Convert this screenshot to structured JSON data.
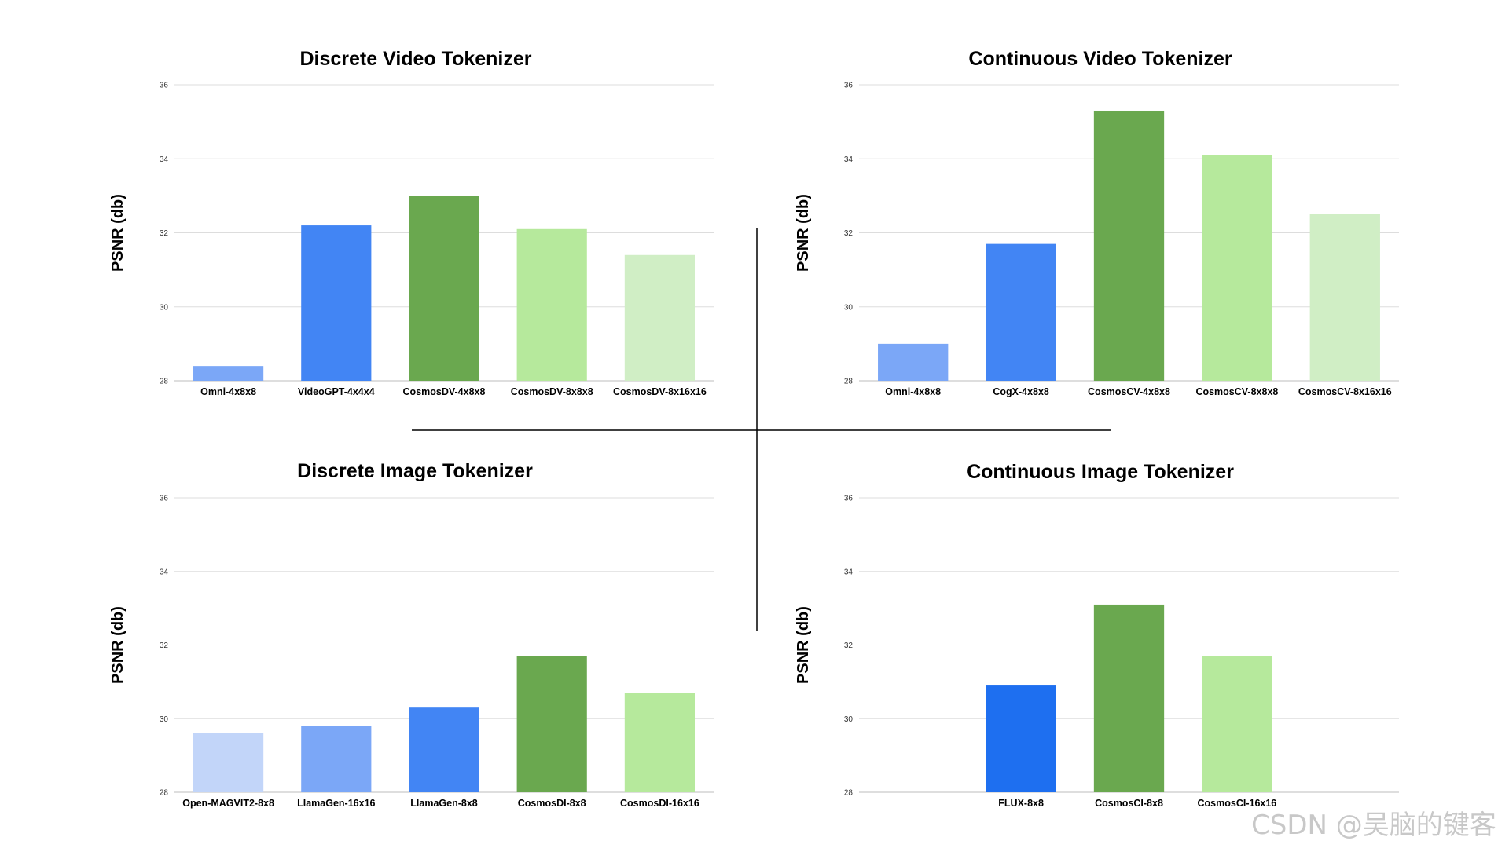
{
  "watermark": "CSDN @吴脑的键客",
  "colors": {
    "grid": "#dddddd",
    "divider": "#000000"
  },
  "chart_data": [
    {
      "type": "bar",
      "title": "Discrete Video Tokenizer",
      "ylabel": "PSNR (db)",
      "xlabel": "",
      "ylim": [
        28,
        36
      ],
      "yticks": [
        "28",
        "30",
        "32",
        "34",
        "36"
      ],
      "grid": true,
      "categories": [
        "Omni-4x8x8",
        "VideoGPT-4x4x4",
        "CosmosDV-4x8x8",
        "CosmosDV-8x8x8",
        "CosmosDV-8x16x16"
      ],
      "values": [
        28.4,
        32.2,
        33.0,
        32.1,
        31.4
      ],
      "colors": [
        "#7ba7f7",
        "#4285f4",
        "#6aa84f",
        "#b6e99c",
        "#d0eec5"
      ]
    },
    {
      "type": "bar",
      "title": "Continuous Video Tokenizer",
      "ylabel": "PSNR (db)",
      "xlabel": "",
      "ylim": [
        28,
        36
      ],
      "yticks": [
        "28",
        "30",
        "32",
        "34",
        "36"
      ],
      "grid": true,
      "categories": [
        "Omni-4x8x8",
        "CogX-4x8x8",
        "CosmosCV-4x8x8",
        "CosmosCV-8x8x8",
        "CosmosCV-8x16x16"
      ],
      "values": [
        29.0,
        31.7,
        35.3,
        34.1,
        32.5
      ],
      "colors": [
        "#7ba7f7",
        "#4285f4",
        "#6aa84f",
        "#b6e99c",
        "#d0eec5"
      ]
    },
    {
      "type": "bar",
      "title": "Discrete Image Tokenizer",
      "ylabel": "PSNR (db)",
      "xlabel": "",
      "ylim": [
        28,
        36
      ],
      "yticks": [
        "28",
        "30",
        "32",
        "34",
        "36"
      ],
      "grid": true,
      "categories": [
        "Open-MAGVIT2-8x8",
        "LlamaGen-16x16",
        "LlamaGen-8x8",
        "CosmosDI-8x8",
        "CosmosDI-16x16"
      ],
      "values": [
        29.6,
        29.8,
        30.3,
        31.7,
        30.7
      ],
      "colors": [
        "#c2d5f9",
        "#7ba7f7",
        "#4285f4",
        "#6aa84f",
        "#b6e99c"
      ]
    },
    {
      "type": "bar",
      "title": "Continuous Image Tokenizer",
      "ylabel": "PSNR (db)",
      "xlabel": "",
      "ylim": [
        28,
        36
      ],
      "yticks": [
        "28",
        "30",
        "32",
        "34",
        "36"
      ],
      "grid": true,
      "categories": [
        "",
        "FLUX-8x8",
        "CosmosCI-8x8",
        "CosmosCI-16x16",
        ""
      ],
      "values": [
        null,
        30.9,
        33.1,
        31.7,
        null
      ],
      "colors": [
        "#ffffff",
        "#1e6ff0",
        "#6aa84f",
        "#b6e99c",
        "#ffffff"
      ]
    }
  ]
}
